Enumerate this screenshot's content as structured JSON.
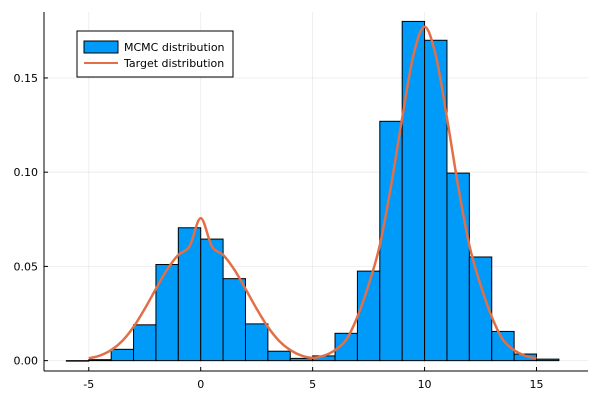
{
  "chart_data": {
    "type": "bar",
    "title": "",
    "xlabel": "",
    "ylabel": "",
    "xlim": [
      -7.0,
      17.3
    ],
    "ylim": [
      -0.0055,
      0.185
    ],
    "grid": true,
    "legend_position": "top-left",
    "x_ticks": [
      {
        "value": -5,
        "label": "-5"
      },
      {
        "value": 0,
        "label": "0"
      },
      {
        "value": 5,
        "label": "5"
      },
      {
        "value": 10,
        "label": "10"
      },
      {
        "value": 15,
        "label": "15"
      }
    ],
    "y_ticks": [
      {
        "value": 0.0,
        "label": "0.00"
      },
      {
        "value": 0.05,
        "label": "0.05"
      },
      {
        "value": 0.1,
        "label": "0.10"
      },
      {
        "value": 0.15,
        "label": "0.15"
      }
    ],
    "series": [
      {
        "name": "MCMC distribution",
        "kind": "histogram",
        "color": "#009af9",
        "edge_color": "#000000",
        "bins": [
          {
            "x0": -6,
            "x1": -5,
            "value": 0.0
          },
          {
            "x0": -5,
            "x1": -4,
            "value": 0.0005
          },
          {
            "x0": -4,
            "x1": -3,
            "value": 0.006
          },
          {
            "x0": -3,
            "x1": -2,
            "value": 0.019
          },
          {
            "x0": -2,
            "x1": -1,
            "value": 0.051
          },
          {
            "x0": -1,
            "x1": 0,
            "value": 0.0705
          },
          {
            "x0": 0,
            "x1": 1,
            "value": 0.0645
          },
          {
            "x0": 1,
            "x1": 2,
            "value": 0.0435
          },
          {
            "x0": 2,
            "x1": 3,
            "value": 0.0195
          },
          {
            "x0": 3,
            "x1": 4,
            "value": 0.005
          },
          {
            "x0": 4,
            "x1": 5,
            "value": 0.0012
          },
          {
            "x0": 5,
            "x1": 6,
            "value": 0.0025
          },
          {
            "x0": 6,
            "x1": 7,
            "value": 0.0145
          },
          {
            "x0": 7,
            "x1": 8,
            "value": 0.0475
          },
          {
            "x0": 8,
            "x1": 9,
            "value": 0.127
          },
          {
            "x0": 9,
            "x1": 10,
            "value": 0.18
          },
          {
            "x0": 10,
            "x1": 11,
            "value": 0.17
          },
          {
            "x0": 11,
            "x1": 12,
            "value": 0.0995
          },
          {
            "x0": 12,
            "x1": 13,
            "value": 0.055
          },
          {
            "x0": 13,
            "x1": 14,
            "value": 0.0155
          },
          {
            "x0": 14,
            "x1": 15,
            "value": 0.0035
          },
          {
            "x0": 15,
            "x1": 16,
            "value": 0.0008
          }
        ]
      },
      {
        "name": "Target distribution",
        "kind": "line",
        "color": "#e26f46",
        "x": [
          -5,
          -4.5,
          -4,
          -3.5,
          -3,
          -2.5,
          -2,
          -1.5,
          -1,
          -0.5,
          0,
          0.5,
          1,
          1.5,
          2,
          2.5,
          3,
          3.5,
          4,
          4.5,
          5,
          5.5,
          6,
          6.5,
          7,
          7.5,
          8,
          8.5,
          9,
          9.5,
          10,
          10.5,
          11,
          11.5,
          12,
          12.5,
          13,
          13.5,
          14,
          14.5,
          15
        ],
        "values": [
          0.0012,
          0.0027,
          0.0056,
          0.0105,
          0.0179,
          0.0275,
          0.0381,
          0.0483,
          0.0561,
          0.0606,
          0.0756,
          0.0606,
          0.0561,
          0.0483,
          0.0381,
          0.0275,
          0.0179,
          0.0105,
          0.0056,
          0.0027,
          0.0015,
          0.0026,
          0.0056,
          0.0111,
          0.0233,
          0.0402,
          0.0612,
          0.0926,
          0.1288,
          0.162,
          0.1772,
          0.162,
          0.1288,
          0.0926,
          0.0612,
          0.0402,
          0.0233,
          0.0111,
          0.0056,
          0.0026,
          0.0012
        ]
      }
    ]
  }
}
